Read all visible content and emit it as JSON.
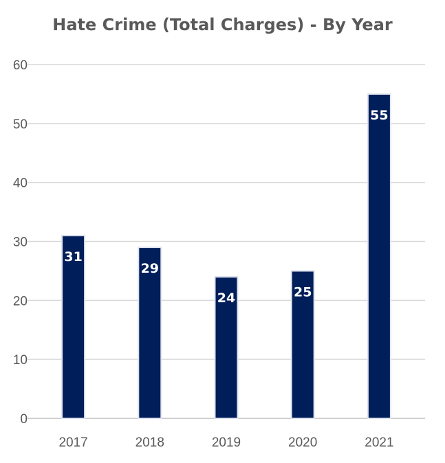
{
  "chart_data": {
    "type": "bar",
    "title": "Hate Crime (Total Charges) - By Year",
    "categories": [
      "2017",
      "2018",
      "2019",
      "2020",
      "2021"
    ],
    "values": [
      31,
      29,
      24,
      25,
      55
    ],
    "data_labels": [
      "31",
      "29",
      "24",
      "25",
      "55"
    ],
    "y_ticks": [
      "0",
      "10",
      "20",
      "30",
      "40",
      "50",
      "60"
    ],
    "ylim": [
      0,
      60
    ],
    "grid": true,
    "legend": "none",
    "bar_color": "#001e5a"
  }
}
